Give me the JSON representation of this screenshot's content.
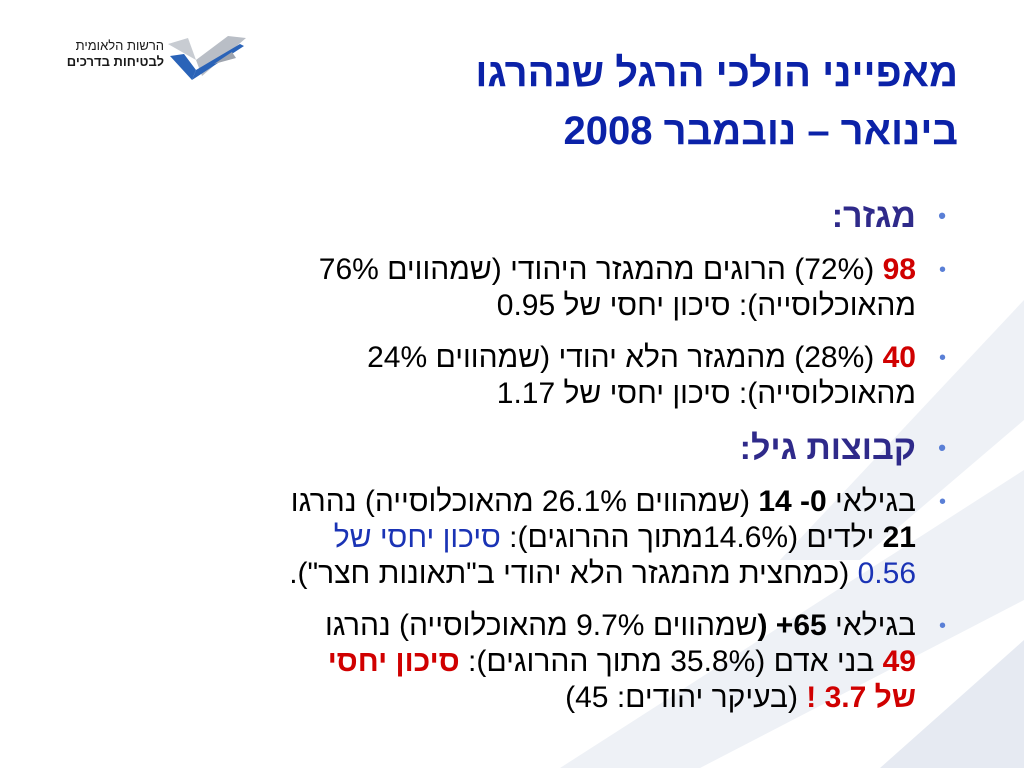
{
  "logo": {
    "line1": "הרשות הלאומית",
    "line2": "לבטיחות בדרכים"
  },
  "title": {
    "line1": "מאפייני הולכי הרגל שנהרגו",
    "line2": "בינואר – נובמבר 2008"
  },
  "colors": {
    "title": "#0b22a8",
    "heading": "#2f2a8a",
    "highlight_red": "#d00000",
    "highlight_blue": "#1a33b5",
    "bullet": "#5a7fd6"
  },
  "sections": [
    {
      "heading": "מגזר:",
      "items": [
        {
          "num": "98",
          "l1_rest": " (72%) הרוגים מהמגזר היהודי (שמהווים 76%",
          "l2": "מהאוכלוסייה): סיכון יחסי של 0.95"
        },
        {
          "num": "40",
          "l1_rest": " (28%) מהמגזר הלא יהודי (שמהווים 24%",
          "l2": "מהאוכלוסייה): סיכון יחסי של 1.17"
        }
      ]
    },
    {
      "heading": "קבוצות גיל:",
      "items": [
        {
          "l1_a": "בגילאי ",
          "l1_b": "0- 14",
          "l1_c": " (שמהווים 26.1% מהאוכלוסייה) נהרגו",
          "l2_num": "21",
          "l2_a": " ילדים (14.6%מתוך ההרוגים): ",
          "l2_blue": "סיכון יחסי של",
          "l3_blue": "0.56",
          "l3_rest": " (כמחצית מהמגזר הלא יהודי ב\"תאונות חצר\")."
        },
        {
          "l1_a": "בגילאי ",
          "l1_b": "65+ (",
          "l1_c": "שמהווים 9.7% מהאוכלוסייה) נהרגו",
          "l2_num": "49",
          "l2_a": " בני אדם (35.8% מתוך ההרוגים): ",
          "l2_red": "סיכון יחסי",
          "l3_red": "של 3.7 !",
          "l3_rest": " (בעיקר יהודים: 45)"
        }
      ]
    }
  ]
}
